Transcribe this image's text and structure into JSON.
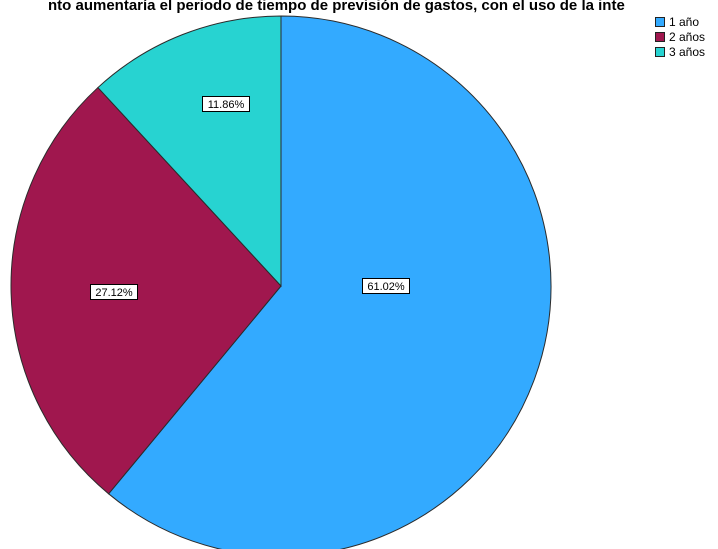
{
  "chart_data": {
    "type": "pie",
    "title": "nto aumentaría el periodo de tiempo de previsión de gastos, con el uso de la inte",
    "categories": [
      "1 año",
      "2 años",
      "3 años"
    ],
    "values": [
      61.02,
      27.12,
      11.86
    ],
    "data_labels": [
      "61.02%",
      "27.12%",
      "11.86%"
    ],
    "colors": [
      "#33aaff",
      "#a0174e",
      "#27d3d1"
    ],
    "legend_position": "top-right",
    "start": "top",
    "direction": "clockwise"
  }
}
